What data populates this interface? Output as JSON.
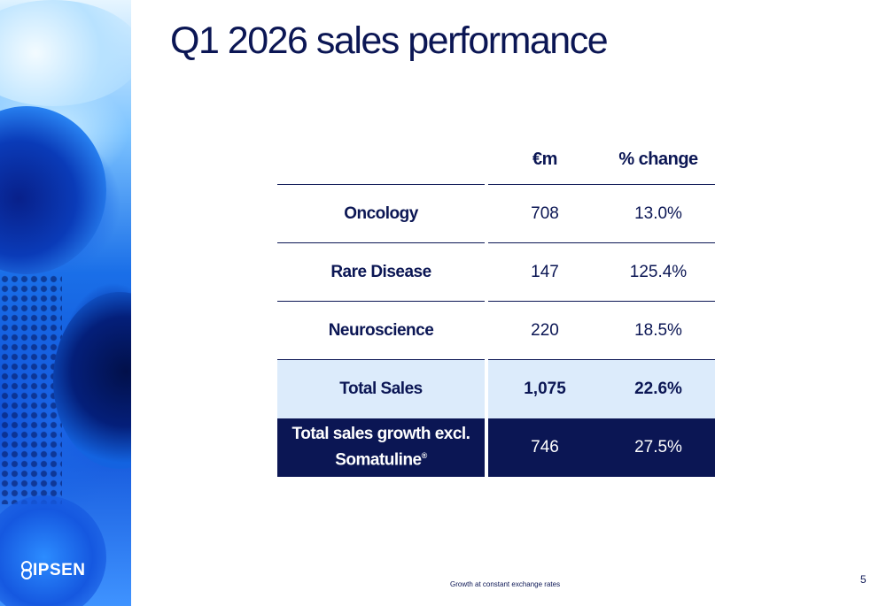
{
  "brand": {
    "logo_text": "IPSEN",
    "primary_color": "#0b1654",
    "highlight_color": "#dcebfb"
  },
  "slide": {
    "title": "Q1 2026 sales performance",
    "footnote": "Growth at constant exchange rates",
    "page_number": "5"
  },
  "table": {
    "columns": [
      "",
      "€m",
      "% change"
    ],
    "rows": [
      {
        "label": "Oncology",
        "value": "708",
        "change": "13.0%"
      },
      {
        "label": "Rare Disease",
        "value": "147",
        "change": "125.4%"
      },
      {
        "label": "Neuroscience",
        "value": "220",
        "change": "18.5%"
      },
      {
        "label": "Total Sales",
        "value": "1,075",
        "change": "22.6%"
      },
      {
        "label_line1": "Total sales growth excl.",
        "label_line2": "Somatuline",
        "label_mark": "®",
        "value": "746",
        "change": "27.5%"
      }
    ]
  }
}
